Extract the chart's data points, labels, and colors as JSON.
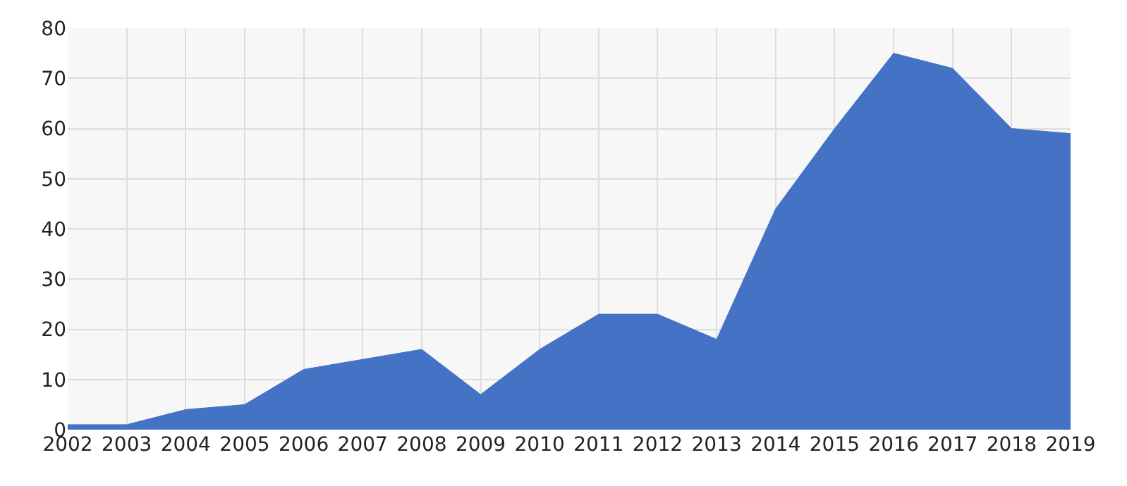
{
  "chart_data": {
    "type": "area",
    "categories": [
      "2002",
      "2003",
      "2004",
      "2005",
      "2006",
      "2007",
      "2008",
      "2009",
      "2010",
      "2011",
      "2012",
      "2013",
      "2014",
      "2015",
      "2016",
      "2017",
      "2018",
      "2019"
    ],
    "values": [
      1,
      1,
      4,
      5,
      12,
      14,
      16,
      7,
      16,
      23,
      23,
      18,
      44,
      60,
      75,
      72,
      60,
      59
    ],
    "color": "#4472c4",
    "ylim": [
      0,
      80
    ],
    "yticks": [
      0,
      10,
      20,
      30,
      40,
      50,
      60,
      70,
      80
    ],
    "grid": true,
    "legend": false
  }
}
